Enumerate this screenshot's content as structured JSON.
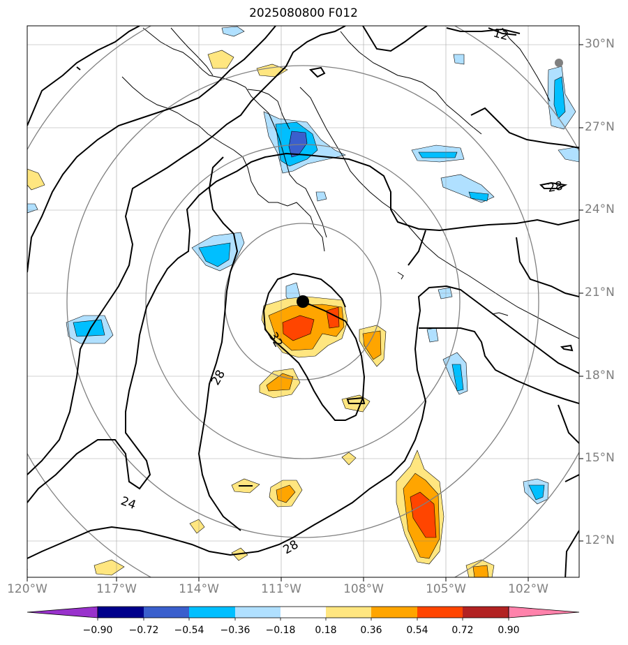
{
  "title": "2025080800 F012",
  "lat_labels": [
    "30°N",
    "27°N",
    "24°N",
    "21°N",
    "18°N",
    "15°N",
    "12°N"
  ],
  "lon_labels": [
    "120°W",
    "117°W",
    "114°W",
    "111°W",
    "108°W",
    "105°W",
    "102°W"
  ],
  "contour_labels": [
    "12",
    "28",
    "32",
    "28",
    "24",
    "28"
  ],
  "colorbar": {
    "ticks": [
      "−0.90",
      "−0.72",
      "−0.54",
      "−0.36",
      "−0.18",
      "0.18",
      "0.36",
      "0.54",
      "0.72",
      "0.90"
    ],
    "colors": [
      "#9932cc",
      "#00008b",
      "#3a5fcd",
      "#00bfff",
      "#b0e0ff",
      "#ffffff",
      "#ffe680",
      "#ffa500",
      "#ff4500",
      "#b22222",
      "#ff82ab"
    ]
  }
}
